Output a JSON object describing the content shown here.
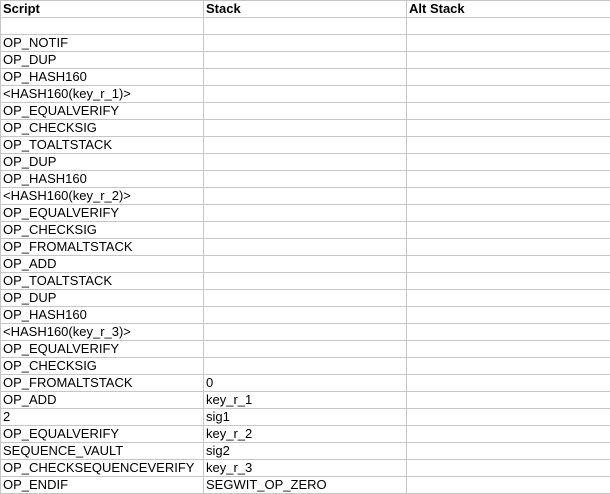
{
  "columns": [
    "Script",
    "Stack",
    "Alt Stack"
  ],
  "rows": [
    [
      "",
      "",
      ""
    ],
    [
      "OP_NOTIF",
      "",
      ""
    ],
    [
      "OP_DUP",
      "",
      ""
    ],
    [
      "OP_HASH160",
      "",
      ""
    ],
    [
      "<HASH160(key_r_1)>",
      "",
      ""
    ],
    [
      "OP_EQUALVERIFY",
      "",
      ""
    ],
    [
      "OP_CHECKSIG",
      "",
      ""
    ],
    [
      "OP_TOALTSTACK",
      "",
      ""
    ],
    [
      "OP_DUP",
      "",
      ""
    ],
    [
      "OP_HASH160",
      "",
      ""
    ],
    [
      "<HASH160(key_r_2)>",
      "",
      ""
    ],
    [
      "OP_EQUALVERIFY",
      "",
      ""
    ],
    [
      "OP_CHECKSIG",
      "",
      ""
    ],
    [
      "OP_FROMALTSTACK",
      "",
      ""
    ],
    [
      "OP_ADD",
      "",
      ""
    ],
    [
      "OP_TOALTSTACK",
      "",
      ""
    ],
    [
      "OP_DUP",
      "",
      ""
    ],
    [
      "OP_HASH160",
      "",
      ""
    ],
    [
      "<HASH160(key_r_3)>",
      "",
      ""
    ],
    [
      "OP_EQUALVERIFY",
      "",
      ""
    ],
    [
      "OP_CHECKSIG",
      "",
      ""
    ],
    [
      "OP_FROMALTSTACK",
      "0",
      ""
    ],
    [
      "OP_ADD",
      "key_r_1",
      ""
    ],
    [
      "2",
      "sig1",
      ""
    ],
    [
      "OP_EQUALVERIFY",
      "key_r_2",
      ""
    ],
    [
      "SEQUENCE_VAULT",
      "sig2",
      ""
    ],
    [
      "OP_CHECKSEQUENCEVERIFY",
      "key_r_3",
      ""
    ],
    [
      "OP_ENDIF",
      "SEGWIT_OP_ZERO",
      ""
    ]
  ]
}
